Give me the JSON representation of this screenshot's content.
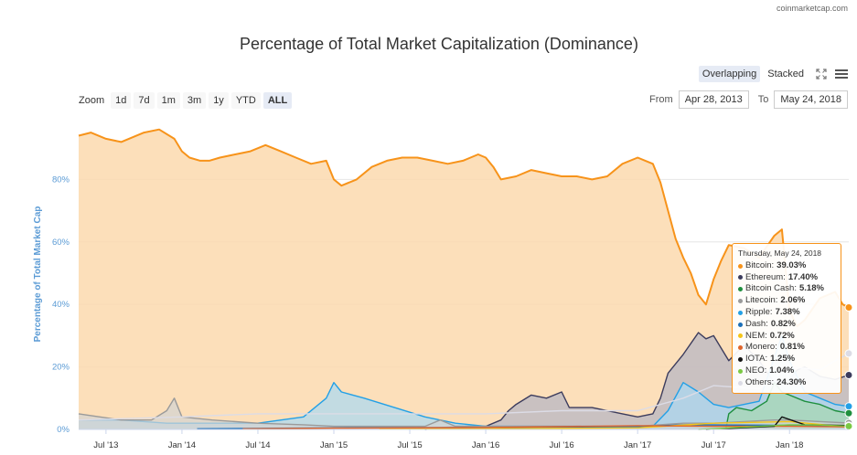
{
  "credit": "coinmarketcap.com",
  "toolbar": {
    "overlapping": "Overlapping",
    "stacked": "Stacked",
    "zoom_label": "Zoom",
    "zoom_buttons": [
      "1d",
      "7d",
      "1m",
      "3m",
      "1y",
      "YTD",
      "ALL"
    ],
    "zoom_active": "ALL",
    "from_label": "From",
    "from_value": "Apr 28, 2013",
    "to_label": "To",
    "to_value": "May 24, 2018",
    "fullscreen_icon": "expand-icon",
    "menu_icon": "hamburger-menu-icon"
  },
  "tooltip": {
    "date": "Thursday, May 24, 2018",
    "rows": [
      {
        "label": "Bitcoin:",
        "value": "39.03%",
        "color": "#f7931a"
      },
      {
        "label": "Ethereum:",
        "value": "17.40%",
        "color": "#3c3c5d"
      },
      {
        "label": "Bitcoin Cash:",
        "value": "5.18%",
        "color": "#1e8f3e"
      },
      {
        "label": "Litecoin:",
        "value": "2.06%",
        "color": "#9a9a9a"
      },
      {
        "label": "Ripple:",
        "value": "7.38%",
        "color": "#23a0e6"
      },
      {
        "label": "Dash:",
        "value": "0.82%",
        "color": "#1c6fb8"
      },
      {
        "label": "NEM:",
        "value": "0.72%",
        "color": "#f5c518"
      },
      {
        "label": "Monero:",
        "value": "0.81%",
        "color": "#e0652b"
      },
      {
        "label": "IOTA:",
        "value": "1.25%",
        "color": "#111111"
      },
      {
        "label": "NEO:",
        "value": "1.04%",
        "color": "#7ac943"
      },
      {
        "label": "Others:",
        "value": "24.30%",
        "color": "#dcdce6"
      }
    ]
  },
  "chart_data": {
    "type": "area",
    "title": "Percentage of Total Market Capitalization (Dominance)",
    "ylabel": "Percentage of Total Market Cap",
    "xlabel": "",
    "ylim": [
      0,
      100
    ],
    "yticks": [
      "0%",
      "20%",
      "40%",
      "60%",
      "80%"
    ],
    "ytick_values": [
      0,
      20,
      40,
      60,
      80
    ],
    "xticks": [
      "Jul '13",
      "Jan '14",
      "Jul '14",
      "Jan '15",
      "Jul '15",
      "Jan '16",
      "Jul '16",
      "Jan '17",
      "Jul '17",
      "Jan '18"
    ],
    "xtick_values": [
      2013.5,
      2014.0,
      2014.5,
      2015.0,
      2015.5,
      2016.0,
      2016.5,
      2017.0,
      2017.5,
      2018.0
    ],
    "xlim": [
      2013.32,
      2018.39
    ],
    "grid": true,
    "legend": "tooltip",
    "series": [
      {
        "name": "Bitcoin",
        "color": "#f7931a",
        "fill": "#fbd9ae",
        "x": [
          2013.32,
          2013.4,
          2013.5,
          2013.6,
          2013.75,
          2013.85,
          2013.95,
          2014.0,
          2014.05,
          2014.12,
          2014.18,
          2014.25,
          2014.35,
          2014.45,
          2014.55,
          2014.65,
          2014.75,
          2014.85,
          2014.95,
          2015.0,
          2015.05,
          2015.15,
          2015.25,
          2015.35,
          2015.45,
          2015.55,
          2015.65,
          2015.75,
          2015.85,
          2015.95,
          2016.0,
          2016.05,
          2016.1,
          2016.2,
          2016.3,
          2016.4,
          2016.5,
          2016.6,
          2016.7,
          2016.8,
          2016.9,
          2017.0,
          2017.05,
          2017.1,
          2017.15,
          2017.2,
          2017.25,
          2017.3,
          2017.35,
          2017.4,
          2017.45,
          2017.5,
          2017.55,
          2017.6,
          2017.7,
          2017.8,
          2017.9,
          2017.95,
          2018.0,
          2018.05,
          2018.1,
          2018.2,
          2018.3,
          2018.35,
          2018.39
        ],
        "y": [
          94,
          95,
          93,
          92,
          95,
          96,
          93,
          89,
          87,
          86,
          86,
          87,
          88,
          89,
          91,
          89,
          87,
          85,
          86,
          80,
          78,
          80,
          84,
          86,
          87,
          87,
          86,
          85,
          86,
          88,
          87,
          84,
          80,
          81,
          83,
          82,
          81,
          81,
          80,
          81,
          85,
          87,
          86,
          85,
          79,
          70,
          61,
          55,
          50,
          43,
          40,
          48,
          54,
          59,
          58,
          55,
          62,
          64,
          38,
          33,
          35,
          42,
          44,
          40,
          39.03
        ]
      },
      {
        "name": "Ethereum",
        "color": "#3c3c5d",
        "fill": "#b4b4c4",
        "x": [
          2015.6,
          2015.8,
          2016.0,
          2016.1,
          2016.15,
          2016.2,
          2016.3,
          2016.4,
          2016.5,
          2016.55,
          2016.7,
          2016.9,
          2017.0,
          2017.1,
          2017.15,
          2017.2,
          2017.3,
          2017.4,
          2017.45,
          2017.5,
          2017.6,
          2017.7,
          2017.8,
          2017.9,
          2018.0,
          2018.05,
          2018.1,
          2018.2,
          2018.3,
          2018.39
        ],
        "y": [
          0,
          1,
          1,
          3,
          6,
          8,
          11,
          10,
          12,
          7,
          7,
          5,
          4,
          5,
          10,
          18,
          24,
          31,
          29,
          30,
          22,
          27,
          22,
          15,
          16,
          19,
          20,
          17,
          16,
          17.4
        ]
      },
      {
        "name": "Ripple",
        "color": "#23a0e6",
        "fill": "#a9d8f3",
        "x": [
          2013.32,
          2013.6,
          2013.9,
          2014.2,
          2014.5,
          2014.8,
          2014.95,
          2015.0,
          2015.05,
          2015.2,
          2015.4,
          2015.6,
          2015.8,
          2016.0,
          2016.3,
          2016.6,
          2016.9,
          2017.1,
          2017.2,
          2017.3,
          2017.4,
          2017.5,
          2017.6,
          2017.8,
          2017.95,
          2018.0,
          2018.1,
          2018.2,
          2018.3,
          2018.39
        ],
        "y": [
          3,
          3,
          2,
          2,
          2,
          4,
          10,
          15,
          12,
          10,
          7,
          4,
          2,
          1,
          1,
          1,
          1,
          1,
          6,
          15,
          12,
          8,
          7,
          9,
          30,
          22,
          12,
          10,
          8,
          7.38
        ]
      },
      {
        "name": "Bitcoin Cash",
        "color": "#1e8f3e",
        "fill": "#a7d7b1",
        "x": [
          2017.58,
          2017.6,
          2017.65,
          2017.75,
          2017.85,
          2017.9,
          2017.95,
          2018.0,
          2018.1,
          2018.2,
          2018.3,
          2018.39
        ],
        "y": [
          0,
          5,
          7,
          6,
          9,
          15,
          12,
          11,
          9,
          8,
          6,
          5.18
        ]
      },
      {
        "name": "Litecoin",
        "color": "#9a9a9a",
        "fill": "#d3d3d3",
        "x": [
          2013.32,
          2013.6,
          2013.8,
          2013.9,
          2013.95,
          2014.0,
          2014.2,
          2014.5,
          2014.8,
          2015.0,
          2015.3,
          2015.6,
          2015.7,
          2015.8,
          2016.0,
          2016.5,
          2017.0,
          2017.3,
          2017.5,
          2017.9,
          2018.0,
          2018.39
        ],
        "y": [
          5,
          3,
          3,
          6,
          10,
          4,
          3,
          2,
          1.5,
          1,
          1,
          1,
          3,
          1,
          1,
          1,
          1,
          2,
          2,
          3,
          3,
          2.06
        ]
      },
      {
        "name": "Others",
        "color": "#dcdce6",
        "fill": "none",
        "x": [
          2013.32,
          2014.0,
          2014.5,
          2015.0,
          2015.5,
          2016.0,
          2016.5,
          2017.0,
          2017.3,
          2017.5,
          2017.8,
          2018.0,
          2018.2,
          2018.3,
          2018.39
        ],
        "y": [
          3,
          4,
          5,
          5,
          5,
          5,
          6,
          6,
          10,
          14,
          13,
          20,
          19,
          22,
          24.3
        ]
      },
      {
        "name": "Dash",
        "color": "#1c6fb8",
        "fill": "none",
        "x": [
          2014.1,
          2015.0,
          2016.0,
          2017.0,
          2017.3,
          2018.0,
          2018.39
        ],
        "y": [
          0.2,
          0.5,
          0.6,
          0.9,
          1.5,
          1.3,
          0.82
        ]
      },
      {
        "name": "NEM",
        "color": "#f5c518",
        "fill": "none",
        "x": [
          2015.3,
          2016.0,
          2017.0,
          2017.5,
          2018.0,
          2018.39
        ],
        "y": [
          0.1,
          0.2,
          0.5,
          2,
          2.5,
          0.72
        ]
      },
      {
        "name": "Monero",
        "color": "#e0652b",
        "fill": "none",
        "x": [
          2014.4,
          2015.0,
          2016.0,
          2017.0,
          2017.5,
          2018.0,
          2018.39
        ],
        "y": [
          0.2,
          0.4,
          0.6,
          1.2,
          1,
          1,
          0.81
        ]
      },
      {
        "name": "IOTA",
        "color": "#111111",
        "fill": "none",
        "x": [
          2017.45,
          2017.9,
          2017.95,
          2018.1,
          2018.39
        ],
        "y": [
          0,
          1,
          4,
          1.5,
          1.25
        ]
      },
      {
        "name": "NEO",
        "color": "#7ac943",
        "fill": "none",
        "x": [
          2017.4,
          2017.6,
          2018.0,
          2018.2,
          2018.39
        ],
        "y": [
          0,
          0.5,
          1.5,
          1.4,
          1.04
        ]
      }
    ]
  }
}
